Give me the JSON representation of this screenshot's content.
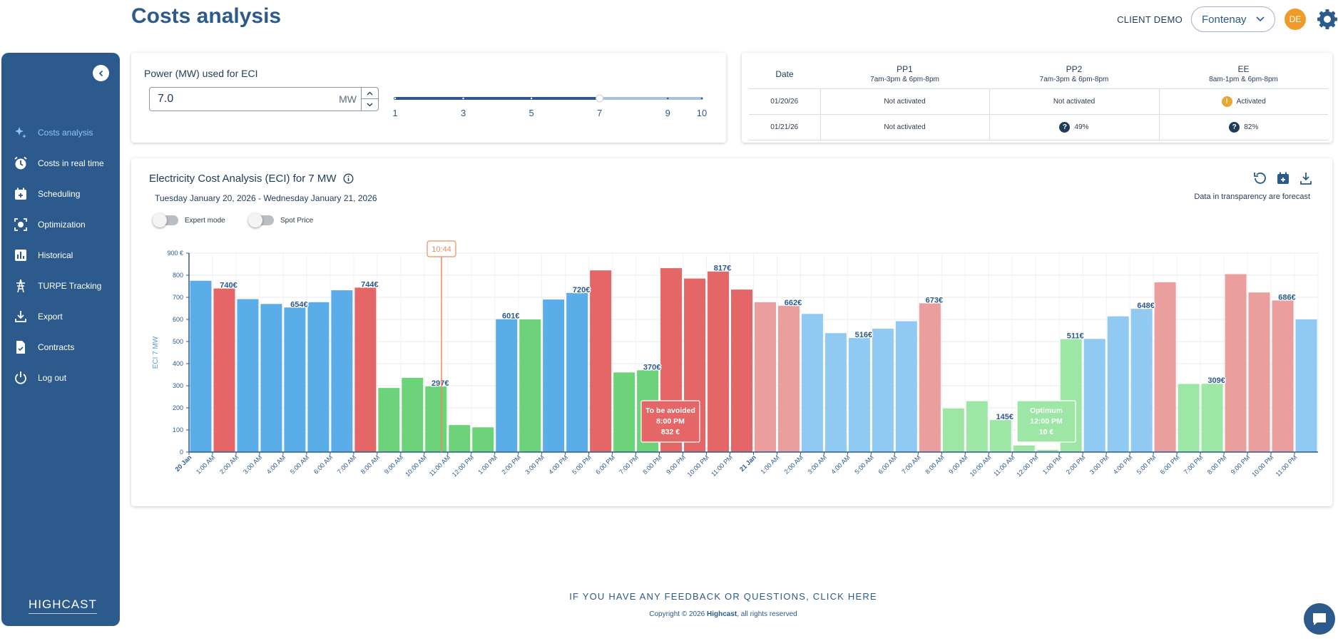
{
  "header": {
    "title": "Costs analysis",
    "client": "CLIENT DEMO",
    "site": "Fontenay",
    "avatar_initials": "DE"
  },
  "sidebar": {
    "items": [
      {
        "label": "Costs analysis",
        "icon": "sparkle-icon",
        "active": true
      },
      {
        "label": "Costs in real time",
        "icon": "clock-icon",
        "active": false
      },
      {
        "label": "Scheduling",
        "icon": "calendar-icon",
        "active": false
      },
      {
        "label": "Optimization",
        "icon": "focus-icon",
        "active": false
      },
      {
        "label": "Historical",
        "icon": "bar-chart-icon",
        "active": false
      },
      {
        "label": "TURPE Tracking",
        "icon": "pylon-icon",
        "active": false
      },
      {
        "label": "Export",
        "icon": "download-icon",
        "active": false
      },
      {
        "label": "Contracts",
        "icon": "document-icon",
        "active": false
      },
      {
        "label": "Log out",
        "icon": "power-icon",
        "active": false
      }
    ],
    "brand": "HIGHCAST"
  },
  "power": {
    "label": "Power (MW) used for ECI",
    "value": "7.0",
    "unit": "MW",
    "slider_ticks": [
      "1",
      "3",
      "5",
      "7",
      "9",
      "10"
    ],
    "slider_min": 1,
    "slider_max": 10,
    "slider_value": 7
  },
  "pp_table": {
    "headers": [
      {
        "title": "Date",
        "sub": ""
      },
      {
        "title": "PP1",
        "sub": "7am-3pm & 6pm-8pm"
      },
      {
        "title": "PP2",
        "sub": "7am-3pm & 6pm-8pm"
      },
      {
        "title": "EE",
        "sub": "8am-1pm & 6pm-8pm"
      }
    ],
    "rows": [
      {
        "date": "01/20/26",
        "pp1": "Not activated",
        "pp2": "Not activated",
        "ee": "Activated"
      },
      {
        "date": "01/21/26",
        "pp1": "Not activated",
        "pp2": "49%",
        "ee": "82%"
      }
    ]
  },
  "chart_panel": {
    "title": "Electricity Cost Analysis (ECI) for 7 MW",
    "date_range": "Tuesday January 20, 2026 - Wednesday January 21, 2026",
    "forecast_note": "Data in transparency are forecast",
    "toggle_expert": "Expert mode",
    "toggle_spot": "Spot Price",
    "current_time": "10:44",
    "tooltip_avoid": {
      "title": "To be avoided",
      "time": "8:00 PM",
      "value": "832 €"
    },
    "tooltip_optimum": {
      "title": "Optimum",
      "time": "12:00 PM",
      "value": "10 €"
    }
  },
  "chart_data": {
    "type": "bar",
    "ylabel": "ECI 7 MW",
    "ylim": [
      0,
      900
    ],
    "yticks": [
      "900 €",
      "800",
      "700",
      "600",
      "500",
      "400",
      "300",
      "200",
      "100",
      "0"
    ],
    "categories": [
      "20 Jan",
      "1:00 AM",
      "2:00 AM",
      "3:00 AM",
      "4:00 AM",
      "5:00 AM",
      "6:00 AM",
      "7:00 AM",
      "8:00 AM",
      "9:00 AM",
      "10:00 AM",
      "11:00 AM",
      "12:00 PM",
      "1:00 PM",
      "2:00 PM",
      "3:00 PM",
      "4:00 PM",
      "5:00 PM",
      "6:00 PM",
      "7:00 PM",
      "8:00 PM",
      "9:00 PM",
      "10:00 PM",
      "11:00 PM",
      "21 Jan",
      "1:00 AM",
      "2:00 AM",
      "3:00 AM",
      "4:00 AM",
      "5:00 AM",
      "6:00 AM",
      "7:00 AM",
      "8:00 AM",
      "9:00 AM",
      "10:00 AM",
      "11:00 AM",
      "12:00 PM",
      "1:00 PM",
      "2:00 PM",
      "3:00 PM",
      "4:00 PM",
      "5:00 PM",
      "6:00 PM",
      "7:00 PM",
      "8:00 PM",
      "9:00 PM",
      "10:00 PM",
      "11:00 PM"
    ],
    "bold_categories": [
      "20 Jan",
      "21 Jan"
    ],
    "values": [
      775,
      740,
      692,
      670,
      654,
      678,
      732,
      744,
      290,
      336,
      297,
      122,
      112,
      601,
      600,
      690,
      720,
      822,
      360,
      370,
      832,
      785,
      817,
      735,
      678,
      662,
      625,
      538,
      516,
      558,
      592,
      673,
      197,
      230,
      145,
      30,
      10,
      511,
      512,
      614,
      648,
      768,
      308,
      309,
      805,
      722,
      686,
      600
    ],
    "levels": [
      "blue",
      "red",
      "blue",
      "blue",
      "blue",
      "blue",
      "blue",
      "red",
      "green",
      "green",
      "green",
      "green",
      "green",
      "blue",
      "green",
      "blue",
      "blue",
      "red",
      "green",
      "green",
      "red",
      "red",
      "red",
      "red",
      "red",
      "red",
      "blue",
      "blue",
      "blue",
      "blue",
      "blue",
      "red",
      "green",
      "green",
      "green",
      "green",
      "green",
      "green",
      "blue",
      "blue",
      "blue",
      "red",
      "green",
      "green",
      "red",
      "red",
      "red",
      "blue"
    ],
    "forecast_from_index": 24,
    "data_labels": [
      {
        "index": 1,
        "text": "740€"
      },
      {
        "index": 4,
        "text": "654€"
      },
      {
        "index": 7,
        "text": "744€"
      },
      {
        "index": 10,
        "text": "297€"
      },
      {
        "index": 13,
        "text": "601€"
      },
      {
        "index": 16,
        "text": "720€"
      },
      {
        "index": 19,
        "text": "370€"
      },
      {
        "index": 22,
        "text": "817€"
      },
      {
        "index": 25,
        "text": "662€"
      },
      {
        "index": 28,
        "text": "516€"
      },
      {
        "index": 31,
        "text": "673€"
      },
      {
        "index": 34,
        "text": "145€"
      },
      {
        "index": 37,
        "text": "511€"
      },
      {
        "index": 40,
        "text": "648€"
      },
      {
        "index": 43,
        "text": "309€"
      },
      {
        "index": 46,
        "text": "686€"
      }
    ],
    "colors": {
      "blue": "#5aade8",
      "red": "#e46666",
      "green": "#6cd37a",
      "blue_forecast": "#90c9f1",
      "red_forecast": "#eb9e9e",
      "green_forecast": "#9de6a6"
    }
  },
  "footer": {
    "feedback": "IF YOU HAVE ANY FEEDBACK OR QUESTIONS, CLICK HERE",
    "copyright_prefix": "Copyright © 2026 ",
    "copyright_brand": "Highcast",
    "copyright_suffix": ", all rights reserved"
  }
}
